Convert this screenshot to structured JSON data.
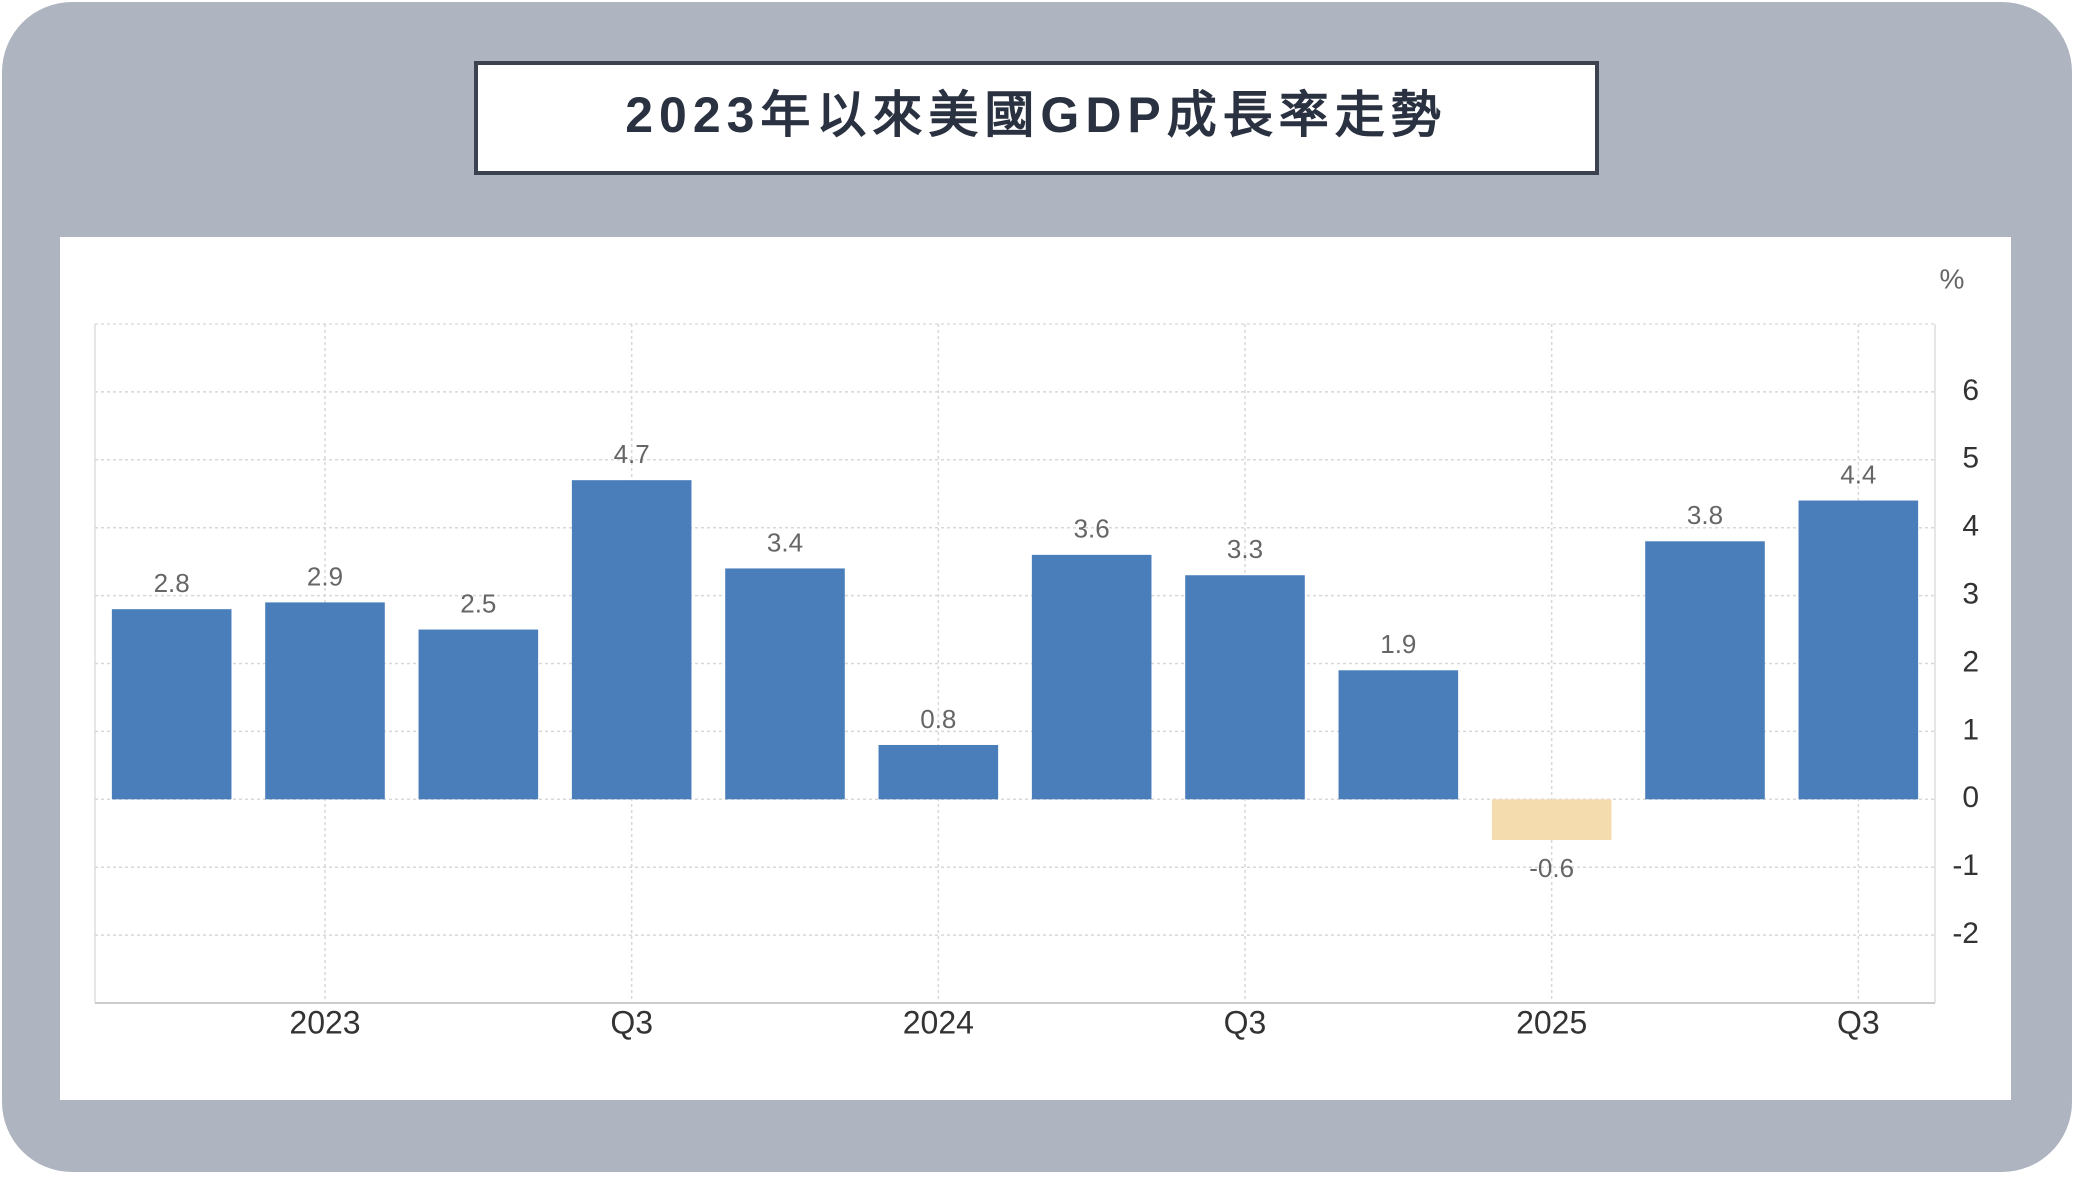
{
  "chart_data": {
    "type": "bar",
    "title": "2023年以來美國GDP成長率走勢",
    "y_unit": "%",
    "categories": [
      null,
      "2023",
      null,
      "Q3",
      null,
      "2024",
      null,
      "Q3",
      null,
      "2025",
      null,
      "Q3"
    ],
    "values": [
      2.8,
      2.9,
      2.5,
      4.7,
      3.4,
      0.8,
      3.6,
      3.3,
      1.9,
      -0.6,
      3.8,
      4.4
    ],
    "color": "#4a7ebb",
    "negative_color": "#f5dcaf",
    "ylim": [
      -3,
      7
    ],
    "yticks": [
      -2,
      -1,
      0,
      1,
      2,
      3,
      4,
      5,
      6
    ],
    "grid": true
  }
}
